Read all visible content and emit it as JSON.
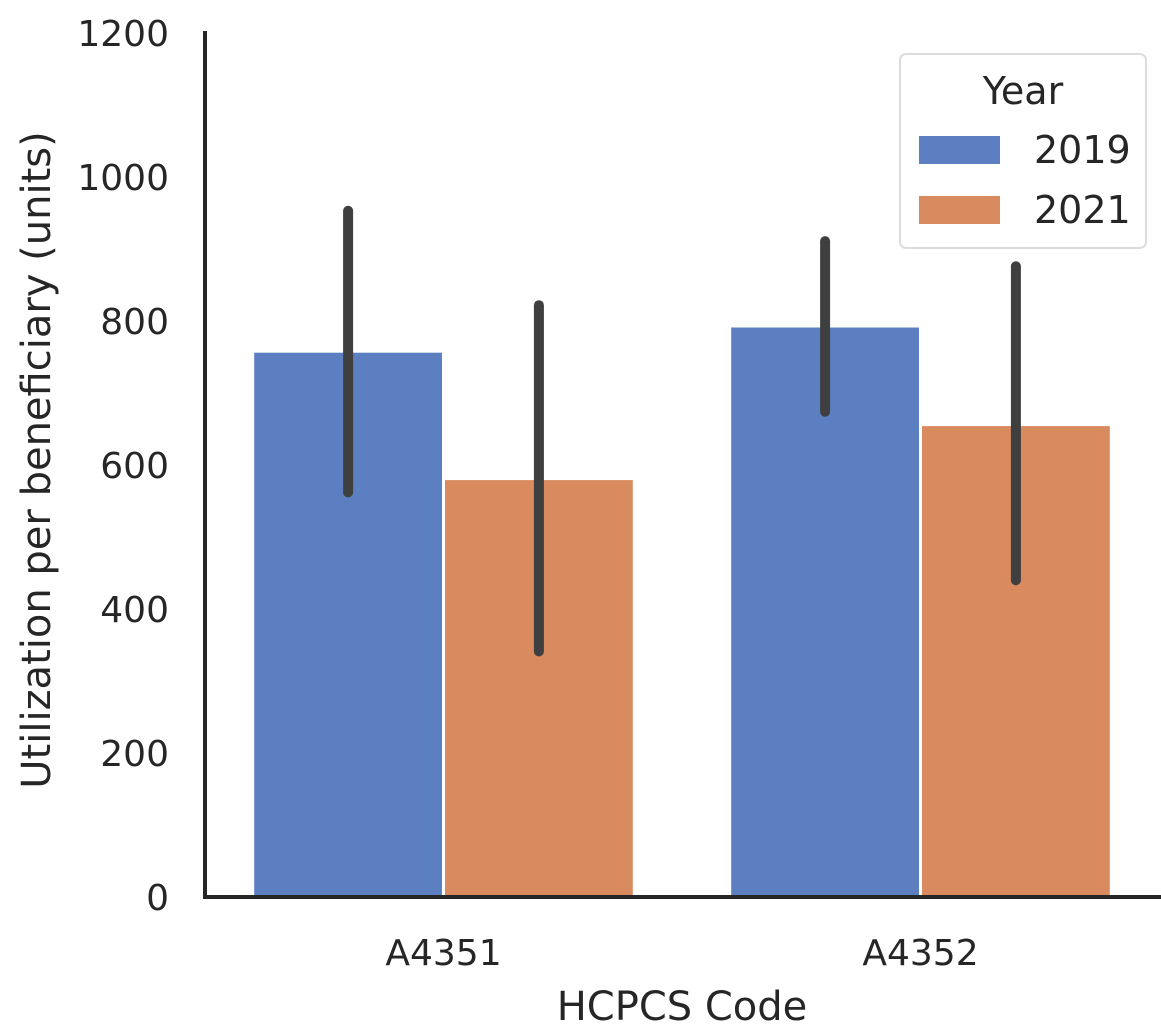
{
  "chart_data": {
    "type": "bar",
    "title": "",
    "xlabel": "HCPCS Code",
    "ylabel": "Utilization per beneficiary (units)",
    "categories": [
      "A4351",
      "A4352"
    ],
    "series": [
      {
        "name": "2019",
        "color": "#5b7fc0",
        "values": [
          756,
          791
        ],
        "ci_low": [
          562,
          674
        ],
        "ci_high": [
          953,
          911
        ]
      },
      {
        "name": "2021",
        "color": "#d98a5e",
        "values": [
          579,
          654
        ],
        "ci_low": [
          341,
          440
        ],
        "ci_high": [
          822,
          876
        ]
      }
    ],
    "ylim": [
      0,
      1200
    ],
    "yticks": [
      "0",
      "200",
      "400",
      "600",
      "800",
      "1000",
      "1200"
    ],
    "grid": false,
    "legend": {
      "title": "Year",
      "placement": "top-right"
    }
  }
}
